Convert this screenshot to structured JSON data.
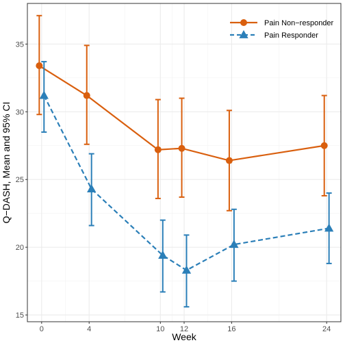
{
  "chart_data": {
    "type": "line",
    "xlabel": "Week",
    "ylabel": "Q−DASH, Mean and 95% CI",
    "x_ticks": [
      0,
      4,
      10,
      12,
      16,
      24
    ],
    "y_ticks": [
      15,
      20,
      25,
      30,
      35
    ],
    "xlim": [
      -1.2,
      25.2
    ],
    "ylim": [
      14.5,
      38.0
    ],
    "grid": true,
    "legend_position": "top-right",
    "series": [
      {
        "name": "Pain Non−responder",
        "color": "#d95f0e",
        "line_style": "solid",
        "marker": "circle",
        "x": [
          -0.2,
          3.8,
          9.8,
          11.8,
          15.8,
          23.8
        ],
        "y": [
          33.4,
          31.2,
          27.2,
          27.3,
          26.4,
          27.5
        ],
        "ci_low": [
          29.8,
          27.6,
          23.6,
          23.7,
          22.7,
          23.8
        ],
        "ci_high": [
          37.1,
          34.9,
          30.9,
          31.0,
          30.1,
          31.2
        ]
      },
      {
        "name": "Pain Responder",
        "color": "#2b7fb8",
        "line_style": "dashed",
        "marker": "triangle",
        "x": [
          0.2,
          4.2,
          10.2,
          12.2,
          16.2,
          24.2
        ],
        "y": [
          31.2,
          24.3,
          19.4,
          18.3,
          20.2,
          21.4
        ],
        "ci_low": [
          28.5,
          21.6,
          16.7,
          15.6,
          17.5,
          18.8
        ],
        "ci_high": [
          33.7,
          26.9,
          22.0,
          20.9,
          22.8,
          24.0
        ]
      }
    ]
  }
}
